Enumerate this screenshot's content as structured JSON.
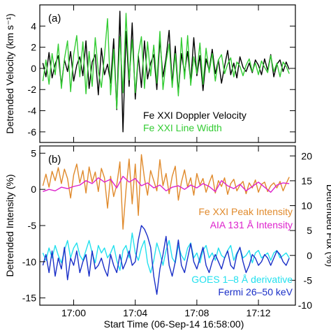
{
  "chart_data": [
    {
      "panel_label": "(a)",
      "type": "line",
      "xlabel": "",
      "ylabel": "Detrended Velocity (km s⁻¹)",
      "xlim": [
        -0.2,
        16.4
      ],
      "ylim": [
        -7,
        6
      ],
      "yticks": [
        -6,
        -4,
        -2,
        0,
        2,
        4
      ],
      "legend_position": "lower-right",
      "series": [
        {
          "name": "Fe XXI Doppler Velocity",
          "color": "#000000",
          "x": [
            0,
            0.2,
            0.4,
            0.6,
            0.8,
            1,
            1.2,
            1.4,
            1.6,
            1.8,
            2,
            2.2,
            2.4,
            2.6,
            2.8,
            3,
            3.2,
            3.4,
            3.6,
            3.8,
            4,
            4.2,
            4.4,
            4.6,
            4.8,
            5,
            5.2,
            5.4,
            5.6,
            5.8,
            6,
            6.2,
            6.4,
            6.6,
            6.8,
            7,
            7.2,
            7.4,
            7.6,
            7.8,
            8,
            8.2,
            8.4,
            8.6,
            8.8,
            9,
            9.2,
            9.4,
            9.6,
            9.8,
            10,
            10.2,
            10.4,
            10.6,
            10.8,
            11,
            11.2,
            11.4,
            11.6,
            11.8,
            12,
            12.2,
            12.4,
            12.6,
            12.8,
            13,
            13.2,
            13.4,
            13.6,
            13.8,
            14,
            14.2,
            14.4,
            14.6,
            14.8,
            15,
            15.2,
            15.4,
            15.6,
            15.8,
            16
          ],
          "values": [
            0.5,
            -0.8,
            1.5,
            -0.9,
            0.4,
            1.2,
            -1.6,
            0.8,
            -0.3,
            1.6,
            -1.2,
            0.3,
            1.1,
            -0.7,
            2.6,
            -1.9,
            0.6,
            1.3,
            -2.5,
            1.9,
            -0.6,
            0.4,
            -1.4,
            2.8,
            -3.9,
            5.4,
            -6.0,
            3.5,
            -1.7,
            4.3,
            -2.9,
            1.2,
            -1.8,
            2.6,
            -1.0,
            0.5,
            1.3,
            -2.0,
            2.7,
            -0.8,
            1.0,
            3.6,
            -1.5,
            2.1,
            -2.3,
            1.4,
            -0.4,
            1.6,
            -1.3,
            2.9,
            -0.7,
            1.2,
            -2.1,
            0.9,
            -0.2,
            1.8,
            -0.5,
            0.8,
            -1.4,
            0.2,
            1.7,
            -0.6,
            0.5,
            -0.9,
            1.1,
            0.1,
            -0.3,
            0.5,
            -0.4,
            0.8,
            0.3,
            -0.6,
            0.9,
            -0.2,
            1.3,
            -0.8,
            0.4,
            0.8,
            -0.3,
            0.6,
            -0.1
          ]
        },
        {
          "name": "Fe XXI Line Width",
          "color": "#33cc33",
          "x": [
            0,
            0.2,
            0.4,
            0.6,
            0.8,
            1,
            1.2,
            1.4,
            1.6,
            1.8,
            2,
            2.2,
            2.4,
            2.6,
            2.8,
            3,
            3.2,
            3.4,
            3.6,
            3.8,
            4,
            4.2,
            4.4,
            4.6,
            4.8,
            5,
            5.2,
            5.4,
            5.6,
            5.8,
            6,
            6.2,
            6.4,
            6.6,
            6.8,
            7,
            7.2,
            7.4,
            7.6,
            7.8,
            8,
            8.2,
            8.4,
            8.6,
            8.8,
            9,
            9.2,
            9.4,
            9.6,
            9.8,
            10,
            10.2,
            10.4,
            10.6,
            10.8,
            11,
            11.2,
            11.4,
            11.6,
            11.8,
            12,
            12.2,
            12.4,
            12.6,
            12.8,
            13,
            13.2,
            13.4,
            13.6,
            13.8,
            14,
            14.2,
            14.4,
            14.6,
            14.8,
            15,
            15.2,
            15.4,
            15.6,
            15.8,
            16
          ],
          "values": [
            -1.2,
            0.8,
            -1.5,
            1.4,
            -0.6,
            2.3,
            -1.9,
            0.9,
            2.6,
            -2.2,
            1.3,
            3.1,
            -0.8,
            2.5,
            -2.4,
            1.6,
            -1.7,
            2.9,
            -0.3,
            -1.8,
            1.2,
            4.7,
            -2.5,
            1.8,
            -3.8,
            3.0,
            -2.3,
            5.2,
            -1.1,
            2.7,
            -2.3,
            1.3,
            3.0,
            -1.9,
            2.5,
            -0.7,
            2.2,
            -1.4,
            3.5,
            -2.0,
            0.6,
            2.3,
            -1.8,
            1.4,
            -2.6,
            2.9,
            -1.0,
            3.1,
            -1.6,
            1.1,
            -0.5,
            2.4,
            -1.5,
            1.9,
            -0.4,
            1.4,
            -1.2,
            0.8,
            1.3,
            -0.5,
            0.4,
            1.0,
            -0.8,
            0.6,
            0.2,
            -0.7,
            0.3,
            0.9,
            -0.3,
            0.5,
            -0.6,
            0.7,
            0.1,
            -0.4,
            1.2,
            -0.3,
            0.5,
            -0.8,
            0.6,
            0.2,
            -0.5
          ]
        }
      ]
    },
    {
      "panel_label": "(b)",
      "type": "line",
      "xlabel": "Start Time (06-Sep-14 16:58:00)",
      "ylabel": "Detrended Intensity (%)",
      "ylabel_right": "Detrended Fux (%)",
      "xlim": [
        -0.2,
        16.4
      ],
      "xticks": [
        2,
        6,
        10,
        14
      ],
      "xticklabels": [
        "17:00",
        "17:04",
        "17:08",
        "17:12"
      ],
      "ylim": [
        -16,
        6
      ],
      "yticks": [
        -15,
        -10,
        -5,
        0,
        5
      ],
      "ylim_right": [
        -10,
        22
      ],
      "yticks_right": [
        -10,
        -5,
        0,
        5,
        10,
        15,
        20
      ],
      "legend_position": "right",
      "series": [
        {
          "name": "Fe XXI Peak Intensity",
          "color": "#e08a2c",
          "axis": "left",
          "x": [
            0,
            0.2,
            0.4,
            0.6,
            0.8,
            1,
            1.2,
            1.4,
            1.6,
            1.8,
            2,
            2.2,
            2.4,
            2.6,
            2.8,
            3,
            3.2,
            3.4,
            3.6,
            3.8,
            4,
            4.2,
            4.4,
            4.6,
            4.8,
            5,
            5.2,
            5.4,
            5.6,
            5.8,
            6,
            6.2,
            6.4,
            6.6,
            6.8,
            7,
            7.2,
            7.4,
            7.6,
            7.8,
            8,
            8.2,
            8.4,
            8.6,
            8.8,
            9,
            9.2,
            9.4,
            9.6,
            9.8,
            10,
            10.2,
            10.4,
            10.6,
            10.8,
            11,
            11.2,
            11.4,
            11.6,
            11.8,
            12,
            12.2,
            12.4,
            12.6,
            12.8,
            13,
            13.2,
            13.4,
            13.6,
            13.8,
            14,
            14.2,
            14.4,
            14.6,
            14.8,
            15,
            15.2,
            15.4,
            15.6,
            15.8,
            16
          ],
          "values": [
            0.5,
            2.1,
            0.3,
            2.5,
            1.2,
            3.0,
            0.8,
            2.8,
            1.5,
            -1.2,
            2.0,
            3.5,
            0.9,
            2.6,
            -0.5,
            3.1,
            1.0,
            2.4,
            -0.3,
            2.9,
            1.6,
            -2.6,
            1.8,
            -1.0,
            0.6,
            3.8,
            -5.5,
            0.0,
            4.2,
            -2.0,
            3.5,
            -3.6,
            4.8,
            1.5,
            -0.8,
            2.6,
            1.2,
            -0.2,
            4.1,
            0.5,
            2.2,
            -0.6,
            1.8,
            3.2,
            -1.5,
            1.0,
            2.7,
            0.3,
            1.6,
            -0.8,
            2.2,
            0.6,
            1.5,
            -0.4,
            0.9,
            2.0,
            -0.5,
            1.2,
            0.4,
            1.6,
            -0.7,
            0.8,
            1.4,
            -0.2,
            0.6,
            1.1,
            -0.6,
            0.9,
            0.2,
            1.3,
            -0.4,
            0.7,
            1.0,
            -0.3,
            0.5,
            0.9,
            0.2,
            1.1,
            -0.2,
            0.8,
            1.7
          ]
        },
        {
          "name": "AIA 131 Å Intensity",
          "color": "#dd22cc",
          "axis": "left",
          "x": [
            0,
            0.4,
            0.8,
            1.2,
            1.6,
            2,
            2.4,
            2.8,
            3.2,
            3.6,
            4,
            4.4,
            4.8,
            5.2,
            5.6,
            6,
            6.4,
            6.8,
            7.2,
            7.6,
            8,
            8.4,
            8.8,
            9.2,
            9.6,
            10,
            10.4,
            10.8,
            11.2,
            11.6,
            12,
            12.4,
            12.8,
            13.2,
            13.6,
            14,
            14.4,
            14.8,
            15.2,
            15.6,
            16
          ],
          "values": [
            -0.3,
            0.0,
            -0.2,
            0.3,
            0.1,
            0.4,
            0.6,
            1.2,
            0.8,
            1.6,
            1.0,
            1.4,
            0.2,
            1.8,
            1.0,
            1.5,
            0.5,
            0.9,
            0.2,
            0.6,
            -0.2,
            0.3,
            0.5,
            0.0,
            0.6,
            0.2,
            0.8,
            0.4,
            -0.3,
            1.2,
            0.5,
            0.1,
            0.7,
            -0.2,
            0.4,
            1.0,
            0.3,
            -0.4,
            0.6,
            0.9,
            0.8
          ]
        },
        {
          "name": "GOES 1–8 Å derivative",
          "color": "#22e0ee",
          "axis": "right",
          "x": [
            0,
            0.2,
            0.4,
            0.6,
            0.8,
            1,
            1.2,
            1.4,
            1.6,
            1.8,
            2,
            2.2,
            2.4,
            2.6,
            2.8,
            3,
            3.2,
            3.4,
            3.6,
            3.8,
            4,
            4.2,
            4.4,
            4.6,
            4.8,
            5,
            5.2,
            5.4,
            5.6,
            5.8,
            6,
            6.2,
            6.4,
            6.6,
            6.8,
            7,
            7.2,
            7.4,
            7.6,
            7.8,
            8,
            8.2,
            8.4,
            8.6,
            8.8,
            9,
            9.2,
            9.4,
            9.6,
            9.8,
            10,
            10.2,
            10.4,
            10.6,
            10.8,
            11,
            11.2,
            11.4,
            11.6,
            11.8,
            12,
            12.2,
            12.4,
            12.6,
            12.8,
            13,
            13.2,
            13.4,
            13.6,
            13.8,
            14,
            14.2,
            14.4,
            14.6,
            14.8,
            15,
            15.2,
            15.4,
            15.6,
            15.8,
            16
          ],
          "values": [
            0.5,
            -1.0,
            1.5,
            -0.5,
            2.0,
            0.0,
            -1.5,
            1.0,
            3.0,
            -0.5,
            1.5,
            2.5,
            0.0,
            -1.0,
            1.0,
            3.0,
            0.5,
            -1.5,
            2.0,
            0.5,
            1.5,
            -0.5,
            0.5,
            2.0,
            -1.0,
            -3.0,
            1.0,
            2.0,
            -0.5,
            4.5,
            0.5,
            -1.0,
            1.5,
            3.0,
            -1.5,
            -3.5,
            -1.0,
            2.5,
            0.5,
            -2.0,
            1.0,
            3.0,
            -0.5,
            -1.5,
            2.0,
            0.0,
            -1.0,
            1.5,
            2.5,
            -0.5,
            0.5,
            -1.5,
            1.0,
            2.0,
            -0.5,
            0.5,
            -1.0,
            1.5,
            0.0,
            -0.5,
            1.0,
            2.0,
            -1.0,
            0.5,
            1.5,
            -0.5,
            0.0,
            1.0,
            -1.5,
            0.5,
            1.0,
            -0.5,
            0.0,
            0.5,
            -1.0,
            0.5,
            1.0,
            -0.5,
            0.0,
            0.5,
            -0.5
          ]
        },
        {
          "name": "Fermi 26–50 keV",
          "color": "#1a2fc8",
          "axis": "left",
          "x": [
            0,
            0.2,
            0.4,
            0.6,
            0.8,
            1,
            1.2,
            1.4,
            1.6,
            1.8,
            2,
            2.2,
            2.4,
            2.6,
            2.8,
            3,
            3.2,
            3.4,
            3.6,
            3.8,
            4,
            4.2,
            4.4,
            4.6,
            4.8,
            5,
            5.2,
            5.4,
            5.6,
            5.8,
            6,
            6.2,
            6.4,
            6.6,
            6.8,
            7,
            7.2,
            7.4,
            7.6,
            7.8,
            8,
            8.2,
            8.4,
            8.6,
            8.8,
            9,
            9.2,
            9.4,
            9.6,
            9.8,
            10,
            10.2,
            10.4,
            10.6,
            10.8,
            11,
            11.2,
            11.4,
            11.6,
            11.8,
            12,
            12.2,
            12.4,
            12.6,
            12.8,
            13,
            13.2,
            13.4,
            13.6,
            13.8,
            14,
            14.2,
            14.4,
            14.6,
            14.8,
            15,
            15.2,
            15.4,
            15.6,
            15.8,
            16
          ],
          "values": [
            -10.5,
            -9.0,
            -11.5,
            -8.5,
            -12.0,
            -9.5,
            -11.0,
            -8.0,
            -12.5,
            -9.5,
            -10.5,
            -8.5,
            -11.5,
            -10.0,
            -9.0,
            -12.0,
            -8.5,
            -11.0,
            -10.5,
            -9.5,
            -11.0,
            -12.0,
            -9.0,
            -10.5,
            -11.5,
            -9.0,
            -11.0,
            -10.0,
            -8.5,
            -10.5,
            -10.0,
            -7.0,
            -5.0,
            -5.5,
            -6.5,
            -8.0,
            -12.0,
            -14.5,
            -11.0,
            -9.0,
            -6.5,
            -10.5,
            -12.0,
            -10.0,
            -7.0,
            -10.5,
            -11.5,
            -9.5,
            -7.5,
            -10.0,
            -11.0,
            -9.5,
            -8.0,
            -10.5,
            -11.5,
            -10.0,
            -9.0,
            -10.0,
            -11.0,
            -9.5,
            -8.5,
            -10.5,
            -11.0,
            -9.0,
            -8.0,
            -10.0,
            -11.5,
            -10.5,
            -9.0,
            -9.5,
            -10.5,
            -10.0,
            -9.0,
            -9.5,
            -10.5,
            -9.5,
            -8.5,
            -9.0,
            -10.0,
            -10.5,
            -9.5
          ]
        }
      ]
    }
  ]
}
